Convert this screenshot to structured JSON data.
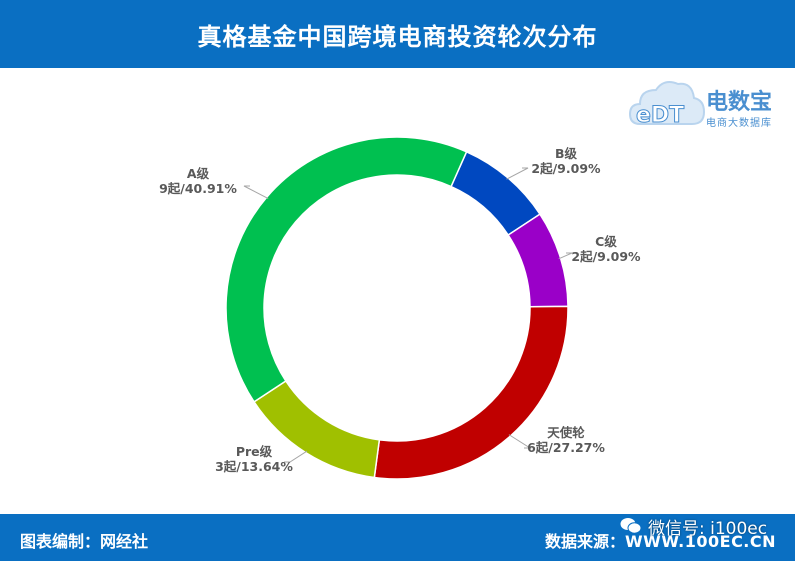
{
  "header": {
    "title": "真格基金中国跨境电商投资轮次分布"
  },
  "footer": {
    "left": "图表编制：网经社",
    "right_label": "数据来源：",
    "site": "WWW.100EC.CN",
    "watermark": "微信号: i100ec"
  },
  "logo": {
    "brand": "电数宝",
    "sub": "电商大数据库",
    "mark": "eDT"
  },
  "chart_data": {
    "type": "pie",
    "title": "真格基金中国跨境电商投资轮次分布",
    "donut": true,
    "slices": [
      {
        "name": "B级",
        "count": 2,
        "label": "2起/9.09%",
        "percent": 9.09,
        "color": "#0048c0"
      },
      {
        "name": "C级",
        "count": 2,
        "label": "2起/9.09%",
        "percent": 9.09,
        "color": "#9a00c8"
      },
      {
        "name": "天使轮",
        "count": 6,
        "label": "6起/27.27%",
        "percent": 27.27,
        "color": "#c00000"
      },
      {
        "name": "Pre级",
        "count": 3,
        "label": "3起/13.64%",
        "percent": 13.64,
        "color": "#a0c000"
      },
      {
        "name": "A级",
        "count": 9,
        "label": "9起/40.91%",
        "percent": 40.91,
        "color": "#00c050"
      }
    ],
    "start_angle_deg": 24
  }
}
